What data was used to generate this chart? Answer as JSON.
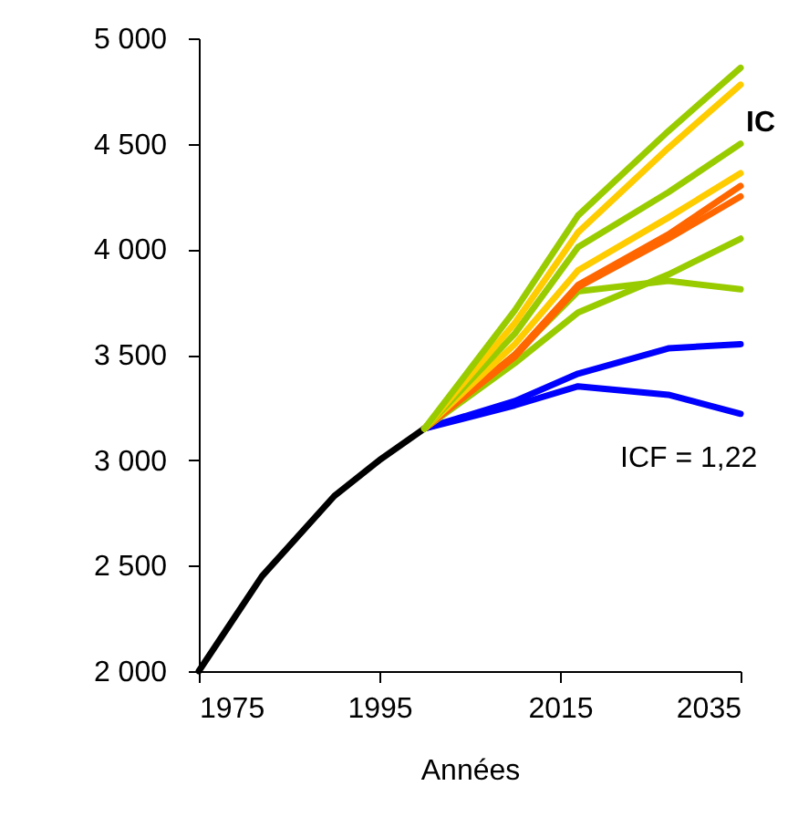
{
  "chart_data": {
    "type": "line",
    "xlabel": "Années",
    "xlim": [
      1975,
      2035
    ],
    "xticks": [
      1975,
      1995,
      2015,
      2035
    ],
    "ylim": [
      2000,
      5000
    ],
    "yticks": [
      {
        "value": 2000,
        "label": "2 000"
      },
      {
        "value": 2500,
        "label": "2 500"
      },
      {
        "value": 3000,
        "label": "3 000"
      },
      {
        "value": 3500,
        "label": "3 500"
      },
      {
        "value": 4000,
        "label": "4 000"
      },
      {
        "value": 4500,
        "label": "4 500"
      },
      {
        "value": 5000,
        "label": "5 000"
      }
    ],
    "grid": false,
    "legend": false,
    "marker": "none",
    "line_style": "solid",
    "annotations": [
      "IC",
      "ICF = 1,22"
    ],
    "series": [
      {
        "color": "#000000",
        "x": [
          1975,
          1982,
          1990,
          1995,
          2000
        ],
        "values": [
          2000,
          2450,
          2830,
          3000,
          3150
        ]
      },
      {
        "color": "#0000ff",
        "x": [
          2000,
          2010,
          2017,
          2027,
          2035
        ],
        "values": [
          3150,
          3260,
          3350,
          3310,
          3220
        ]
      },
      {
        "color": "#0000ff",
        "x": [
          2000,
          2010,
          2017,
          2027,
          2035
        ],
        "values": [
          3150,
          3280,
          3410,
          3530,
          3550
        ]
      },
      {
        "color": "#99cc00",
        "x": [
          2000,
          2010,
          2017,
          2027,
          2035
        ],
        "values": [
          3150,
          3500,
          3800,
          3850,
          3810
        ]
      },
      {
        "color": "#99cc00",
        "x": [
          2000,
          2010,
          2017,
          2027,
          2035
        ],
        "values": [
          3150,
          3460,
          3700,
          3880,
          4050
        ]
      },
      {
        "color": "#ff6600",
        "x": [
          2000,
          2010,
          2017,
          2027,
          2035
        ],
        "values": [
          3150,
          3490,
          3820,
          4050,
          4250
        ]
      },
      {
        "color": "#ff6600",
        "x": [
          2000,
          2010,
          2017,
          2027,
          2035
        ],
        "values": [
          3150,
          3500,
          3830,
          4070,
          4300
        ]
      },
      {
        "color": "#ffcc00",
        "x": [
          2000,
          2010,
          2017,
          2027,
          2035
        ],
        "values": [
          3150,
          3550,
          3900,
          4150,
          4360
        ]
      },
      {
        "color": "#99cc00",
        "x": [
          2000,
          2010,
          2017,
          2027,
          2035
        ],
        "values": [
          3150,
          3600,
          4010,
          4270,
          4500
        ]
      },
      {
        "color": "#ffcc00",
        "x": [
          2000,
          2010,
          2017,
          2027,
          2035
        ],
        "values": [
          3150,
          3650,
          4080,
          4480,
          4780
        ]
      },
      {
        "color": "#99cc00",
        "x": [
          2000,
          2010,
          2017,
          2027,
          2035
        ],
        "values": [
          3150,
          3710,
          4160,
          4560,
          4860
        ]
      }
    ]
  }
}
